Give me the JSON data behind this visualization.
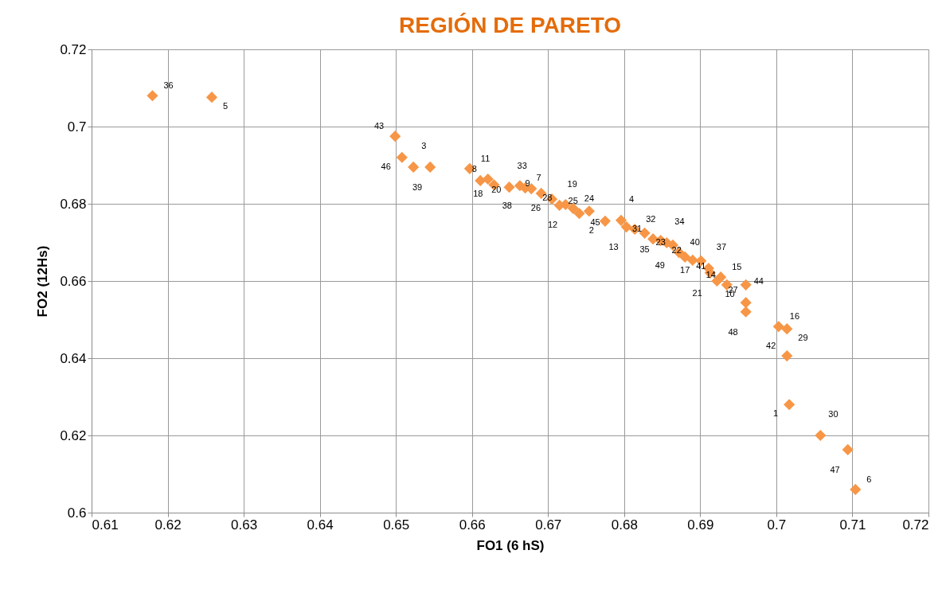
{
  "chart_data": {
    "type": "scatter",
    "title": "REGIÓN DE PARETO",
    "xlabel": "FO1 (6 hS)",
    "ylabel": "FO2 (12Hs)",
    "x": [
      0.618,
      0.6258,
      0.6499,
      0.6508,
      0.6523,
      0.6545,
      0.6597,
      0.6611,
      0.6621,
      0.6629,
      0.6649,
      0.6663,
      0.667,
      0.6678,
      0.6691,
      0.6705,
      0.6715,
      0.6723,
      0.6733,
      0.6741,
      0.6754,
      0.6775,
      0.6796,
      0.6803,
      0.6814,
      0.6827,
      0.6838,
      0.6848,
      0.6856,
      0.6864,
      0.6872,
      0.688,
      0.689,
      0.6901,
      0.6911,
      0.6913,
      0.6927,
      0.6922,
      0.6935,
      0.696,
      0.696,
      0.696,
      0.7003,
      0.7014,
      0.7014,
      0.7017,
      0.7058,
      0.7094,
      0.7104
    ],
    "series": [
      {
        "color": "#f79646",
        "values": [
          0.708,
          0.7076,
          0.6975,
          0.692,
          0.6895,
          0.6895,
          0.6891,
          0.686,
          0.6864,
          0.6849,
          0.6843,
          0.6847,
          0.6841,
          0.6839,
          0.6827,
          0.6812,
          0.6796,
          0.6798,
          0.6788,
          0.6775,
          0.6781,
          0.6755,
          0.6757,
          0.674,
          0.6734,
          0.6724,
          0.6709,
          0.6705,
          0.6699,
          0.6693,
          0.6674,
          0.6662,
          0.6654,
          0.6652,
          0.6633,
          0.6621,
          0.661,
          0.66,
          0.659,
          0.659,
          0.6544,
          0.652,
          0.6482,
          0.6476,
          0.6406,
          0.628,
          0.62,
          0.6163,
          0.606
        ]
      }
    ],
    "annotations": [
      {
        "text": "36",
        "x": 0.618,
        "y": 0.708
      },
      {
        "text": "5",
        "x": 0.6258,
        "y": 0.7076
      },
      {
        "text": "43",
        "x": 0.6499,
        "y": 0.6975
      },
      {
        "text": "46",
        "x": 0.6508,
        "y": 0.692
      },
      {
        "text": "3",
        "x": 0.6523,
        "y": 0.6895
      },
      {
        "text": "39",
        "x": 0.6545,
        "y": 0.6895
      },
      {
        "text": "11",
        "x": 0.6597,
        "y": 0.6891
      },
      {
        "text": "20",
        "x": 0.6611,
        "y": 0.686
      },
      {
        "text": "8",
        "x": 0.6621,
        "y": 0.6864
      },
      {
        "text": "18",
        "x": 0.6629,
        "y": 0.6849
      },
      {
        "text": "33",
        "x": 0.6649,
        "y": 0.6843
      },
      {
        "text": "38",
        "x": 0.6663,
        "y": 0.6847
      },
      {
        "text": "7",
        "x": 0.667,
        "y": 0.6841
      },
      {
        "text": "28",
        "x": 0.6678,
        "y": 0.6839
      },
      {
        "text": "9",
        "x": 0.6691,
        "y": 0.6827
      },
      {
        "text": "26",
        "x": 0.6705,
        "y": 0.6812
      },
      {
        "text": "19",
        "x": 0.6715,
        "y": 0.6796
      },
      {
        "text": "12",
        "x": 0.6723,
        "y": 0.6798
      },
      {
        "text": "24",
        "x": 0.6733,
        "y": 0.6788
      },
      {
        "text": "45",
        "x": 0.6741,
        "y": 0.6775
      },
      {
        "text": "25",
        "x": 0.6754,
        "y": 0.6781
      },
      {
        "text": "2",
        "x": 0.6775,
        "y": 0.6755
      },
      {
        "text": "4",
        "x": 0.6796,
        "y": 0.6757
      },
      {
        "text": "13",
        "x": 0.6803,
        "y": 0.674
      },
      {
        "text": "32",
        "x": 0.6814,
        "y": 0.6734
      },
      {
        "text": "23",
        "x": 0.6827,
        "y": 0.6724
      },
      {
        "text": "31",
        "x": 0.6838,
        "y": 0.6709
      },
      {
        "text": "35",
        "x": 0.6848,
        "y": 0.6705
      },
      {
        "text": "34",
        "x": 0.6856,
        "y": 0.6699
      },
      {
        "text": "49",
        "x": 0.6864,
        "y": 0.6693
      },
      {
        "text": "40",
        "x": 0.6872,
        "y": 0.6674
      },
      {
        "text": "41",
        "x": 0.688,
        "y": 0.6662
      },
      {
        "text": "22",
        "x": 0.689,
        "y": 0.6654
      },
      {
        "text": "17",
        "x": 0.6901,
        "y": 0.6652
      },
      {
        "text": "37",
        "x": 0.6911,
        "y": 0.6633
      },
      {
        "text": "21",
        "x": 0.6913,
        "y": 0.6621
      },
      {
        "text": "15",
        "x": 0.6927,
        "y": 0.661
      },
      {
        "text": "27",
        "x": 0.6922,
        "y": 0.66
      },
      {
        "text": "14",
        "x": 0.6935,
        "y": 0.659
      },
      {
        "text": "10",
        "x": 0.696,
        "y": 0.659
      },
      {
        "text": "44",
        "x": 0.696,
        "y": 0.6544
      },
      {
        "text": "48",
        "x": 0.696,
        "y": 0.652
      },
      {
        "text": "16",
        "x": 0.7003,
        "y": 0.6482
      },
      {
        "text": "29",
        "x": 0.7014,
        "y": 0.6476
      },
      {
        "text": "42",
        "x": 0.7014,
        "y": 0.6406
      },
      {
        "text": "1",
        "x": 0.7017,
        "y": 0.628
      },
      {
        "text": "30",
        "x": 0.7058,
        "y": 0.62
      },
      {
        "text": "47",
        "x": 0.7094,
        "y": 0.6163
      },
      {
        "text": "6",
        "x": 0.7104,
        "y": 0.606
      }
    ],
    "xlim": [
      0.61,
      0.72
    ],
    "xticks": [
      0.61,
      0.62,
      0.63,
      0.64,
      0.65,
      0.66,
      0.67,
      0.68,
      0.69,
      0.7,
      0.71,
      0.72
    ],
    "ylim": [
      0.6,
      0.72
    ],
    "yticks": [
      0.6,
      0.62,
      0.64,
      0.66,
      0.68,
      0.7,
      0.72
    ],
    "grid": true,
    "marker": "diamond"
  }
}
